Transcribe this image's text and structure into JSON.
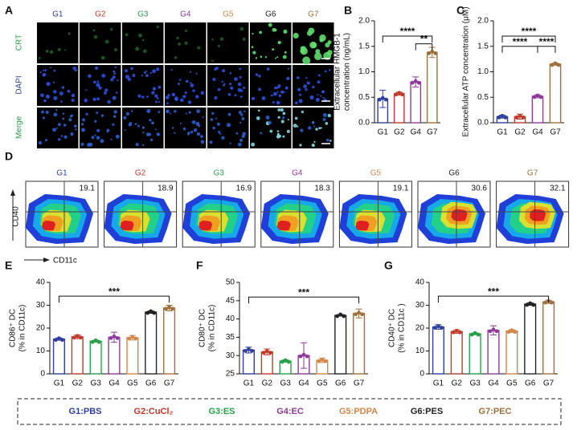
{
  "labels": [
    "A",
    "B",
    "C",
    "D",
    "E",
    "F",
    "G"
  ],
  "groups": [
    {
      "name": "G1",
      "color": "#2e3f9e"
    },
    {
      "name": "G2",
      "color": "#c0392b"
    },
    {
      "name": "G3",
      "color": "#27a04a"
    },
    {
      "name": "G4",
      "color": "#8e3a9a"
    },
    {
      "name": "G5",
      "color": "#d0874a"
    },
    {
      "name": "G6",
      "color": "#222222"
    },
    {
      "name": "G7",
      "color": "#a0703a"
    }
  ],
  "panel_a": {
    "rows": [
      {
        "name": "CRT",
        "color": "#27a04a"
      },
      {
        "name": "DAPI",
        "color": "#2e3f9e"
      },
      {
        "name": "Merge",
        "color": "#27a04a"
      }
    ]
  },
  "panel_d": {
    "percents": [
      "19.1",
      "18.9",
      "16.9",
      "18.3",
      "19.1",
      "30.6",
      "32.1"
    ],
    "y_label": "CD40",
    "x_label": "CD11c"
  },
  "chart_data": [
    {
      "type": "bar",
      "categories": [
        "G1",
        "G2",
        "G4",
        "G7"
      ],
      "values": [
        0.47,
        0.57,
        0.8,
        1.38
      ],
      "errors": [
        0.17,
        0.03,
        0.1,
        0.1
      ],
      "colors": [
        "#2e3f9e",
        "#c0392b",
        "#8e3a9a",
        "#a0703a"
      ],
      "ylabel": [
        "Extracellular HMGB-1",
        "concentration (ng/mL)"
      ],
      "ylim": [
        0,
        2.0
      ],
      "yticks": [
        {
          "value": 0,
          "label": "0.0"
        },
        {
          "value": 0.5,
          "label": "0.5"
        },
        {
          "value": 1,
          "label": "1.0"
        },
        {
          "value": 1.5,
          "label": "1.5"
        },
        {
          "value": 2,
          "label": "2.0"
        }
      ],
      "annotations": [
        "****",
        "**"
      ]
    },
    {
      "type": "bar",
      "categories": [
        "G1",
        "G2",
        "G4",
        "G7"
      ],
      "values": [
        0.12,
        0.12,
        0.52,
        1.15
      ],
      "errors": [
        0.03,
        0.05,
        0.03,
        0.02
      ],
      "colors": [
        "#2e3f9e",
        "#c0392b",
        "#8e3a9a",
        "#a0703a"
      ],
      "ylabel": [
        "Extracellular ATP concentration (μM)"
      ],
      "ylim": [
        0,
        2.0
      ],
      "yticks": [
        {
          "value": 0,
          "label": "0.0"
        },
        {
          "value": 0.5,
          "label": "0.5"
        },
        {
          "value": 1,
          "label": "1.0"
        },
        {
          "value": 1.5,
          "label": "1.5"
        },
        {
          "value": 2,
          "label": "2.0"
        }
      ],
      "annotations": [
        "****",
        "****",
        "****"
      ]
    },
    {
      "type": "bar",
      "categories": [
        "G1",
        "G2",
        "G3",
        "G4",
        "G5",
        "G6",
        "G7"
      ],
      "values": [
        15.2,
        16.2,
        14.3,
        16,
        15.8,
        27,
        28.8
      ],
      "errors": [
        0.5,
        0.8,
        0.4,
        2.2,
        1,
        0.5,
        1.2
      ],
      "colors": [
        "#2e3f9e",
        "#c0392b",
        "#27a04a",
        "#8e3a9a",
        "#d0874a",
        "#222222",
        "#a0703a"
      ],
      "ylabel": [
        "CD86⁺ DC",
        "(% in CD11c)"
      ],
      "ylim": [
        0,
        40
      ],
      "yticks": [
        0,
        10,
        20,
        30,
        40
      ],
      "annotations": [
        "***"
      ]
    },
    {
      "type": "bar",
      "categories": [
        "G1",
        "G2",
        "G3",
        "G4",
        "G5",
        "G6",
        "G7"
      ],
      "values": [
        31.5,
        31,
        28.5,
        30,
        28.7,
        41,
        41.5
      ],
      "errors": [
        0.8,
        0.8,
        0.3,
        3.5,
        0.6,
        0.2,
        1.2
      ],
      "colors": [
        "#2e3f9e",
        "#c0392b",
        "#27a04a",
        "#8e3a9a",
        "#d0874a",
        "#222222",
        "#a0703a"
      ],
      "ylabel": [
        "CD80⁺ DC",
        "(% in CD11c)"
      ],
      "ylim": [
        25,
        50
      ],
      "yticks": [
        25,
        30,
        35,
        40,
        45,
        50
      ],
      "annotations": [
        "***"
      ]
    },
    {
      "type": "bar",
      "categories": [
        "G1",
        "G2",
        "G3",
        "G4",
        "G5",
        "G6",
        "G7"
      ],
      "values": [
        20.5,
        18.5,
        17.5,
        19,
        18.7,
        30.5,
        31.5
      ],
      "errors": [
        1,
        0.8,
        0.4,
        2,
        0.6,
        0.5,
        0.7
      ],
      "colors": [
        "#2e3f9e",
        "#c0392b",
        "#27a04a",
        "#8e3a9a",
        "#d0874a",
        "#222222",
        "#a0703a"
      ],
      "ylabel": [
        "CD40⁺ DC",
        "(% in CD11c )"
      ],
      "ylim": [
        0,
        40
      ],
      "yticks": [
        0,
        10,
        20,
        30,
        40
      ],
      "annotations": [
        "***"
      ]
    }
  ],
  "legend": [
    "G1:PBS",
    "G2:CuCl₂",
    "G3:ES",
    "G4:EC",
    "G5:PDPA",
    "G6:PES",
    "G7:PEC"
  ]
}
